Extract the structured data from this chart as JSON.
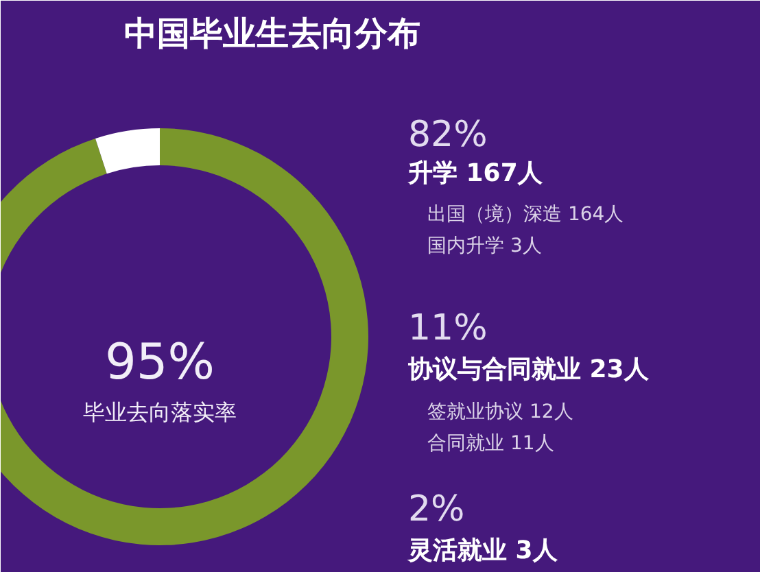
{
  "chart_data": {
    "type": "donut",
    "title": "中国毕业生去向分布",
    "categories": [
      null,
      null
    ],
    "values": [
      95,
      5
    ],
    "colors": [
      "#7a972b",
      "#ffffff"
    ],
    "annotations": [
      "95%",
      "毕业去向落实率",
      "82%",
      "升学 167人",
      "出国（境）深造 164人",
      "国内升学 3人",
      "11%",
      "协议与合同就业 23人",
      "签就业协议 12人",
      "合同就业 11人",
      "2%",
      "灵活就业 3人"
    ]
  }
}
